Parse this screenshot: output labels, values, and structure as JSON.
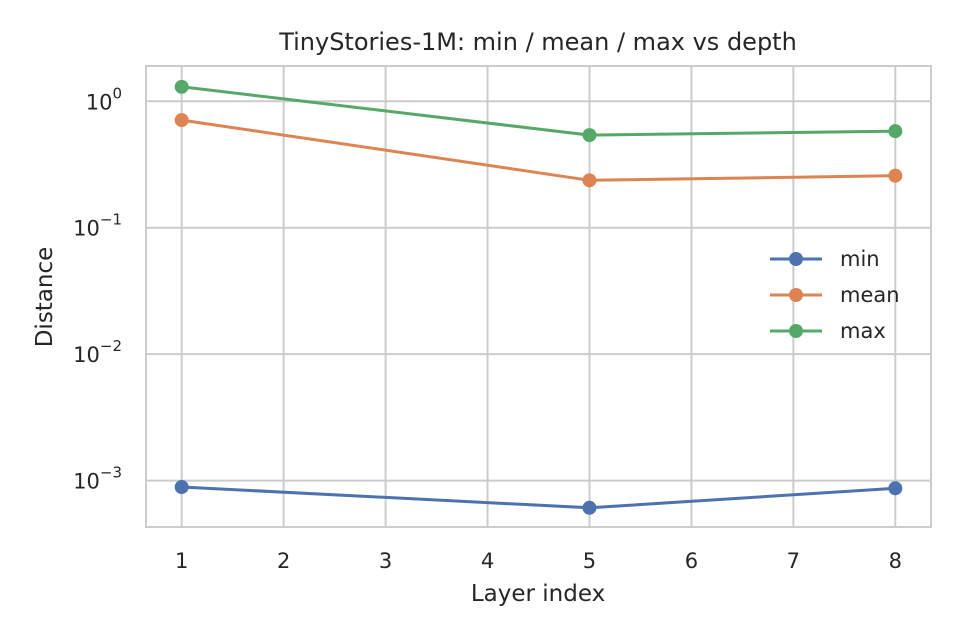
{
  "chart_data": {
    "type": "line",
    "title": "TinyStories-1M: min / mean / max vs depth",
    "xlabel": "Layer index",
    "ylabel": "Distance",
    "x": [
      1,
      5,
      8
    ],
    "xlim": [
      0.65,
      8.35
    ],
    "xticks": [
      1,
      2,
      3,
      4,
      5,
      6,
      7,
      8
    ],
    "xtick_labels": [
      "1",
      "2",
      "3",
      "4",
      "5",
      "6",
      "7",
      "8"
    ],
    "yscale": "log",
    "ylim": [
      0.00043,
      1.9
    ],
    "yticks": [
      0.001,
      0.01,
      0.1,
      1
    ],
    "ytick_labels": [
      {
        "base": "10",
        "exp": "−3"
      },
      {
        "base": "10",
        "exp": "−2"
      },
      {
        "base": "10",
        "exp": "−1"
      },
      {
        "base": "10",
        "exp": "0"
      }
    ],
    "grid": true,
    "legend_position": "center-right",
    "series": [
      {
        "name": "min",
        "color": "#4c72b0",
        "values": [
          0.00089,
          0.00061,
          0.00087
        ]
      },
      {
        "name": "mean",
        "color": "#dd8452",
        "values": [
          0.71,
          0.237,
          0.258
        ]
      },
      {
        "name": "max",
        "color": "#55a868",
        "values": [
          1.3,
          0.54,
          0.58
        ]
      }
    ]
  }
}
